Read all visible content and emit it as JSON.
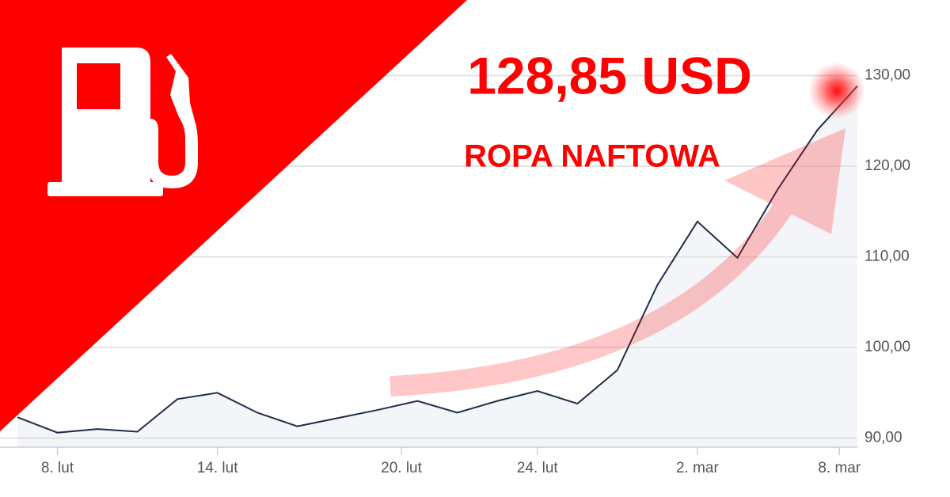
{
  "chart_data": {
    "type": "line",
    "title": "128,85 USD",
    "subtitle": "ROPA NAFTOWA",
    "x": [
      0,
      1,
      2,
      3,
      4,
      5,
      6,
      7,
      8,
      9,
      10,
      11,
      12,
      13,
      14,
      15,
      16,
      17,
      18,
      19,
      20,
      21
    ],
    "values": [
      92.3,
      90.6,
      91.0,
      90.7,
      94.3,
      95.0,
      92.8,
      91.3,
      92.2,
      93.1,
      94.1,
      92.8,
      94.1,
      95.2,
      93.8,
      97.5,
      106.9,
      113.9,
      109.9,
      117.4,
      124.0,
      128.85
    ],
    "color": "#1f2d4a",
    "xlim": [
      0,
      21
    ],
    "xticks": [
      {
        "value": 1,
        "label": "8. lut"
      },
      {
        "value": 5,
        "label": "14. lut"
      },
      {
        "value": 9.6,
        "label": "20. lut"
      },
      {
        "value": 13,
        "label": "24. lut"
      },
      {
        "value": 17,
        "label": "2. mar"
      },
      {
        "value": 20.55,
        "label": "8. mar"
      }
    ],
    "ylim": [
      89,
      138
    ],
    "yticks": [
      {
        "value": 90,
        "label": "90,00"
      },
      {
        "value": 100,
        "label": "100,00"
      },
      {
        "value": 110,
        "label": "110,00"
      },
      {
        "value": 120,
        "label": "120,00"
      },
      {
        "value": 130,
        "label": "130,00"
      }
    ],
    "grid": true
  }
}
